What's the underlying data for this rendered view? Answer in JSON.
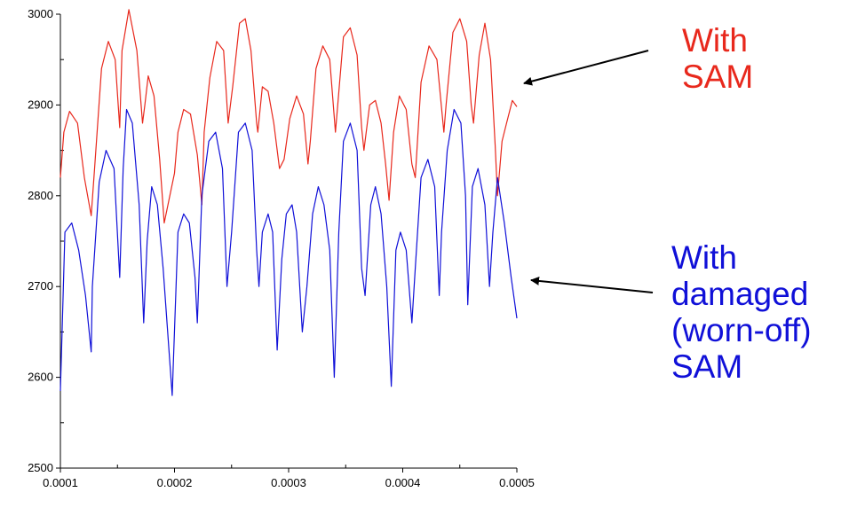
{
  "chart_data": {
    "type": "line",
    "title": "",
    "xlabel": "",
    "ylabel": "",
    "xlim": [
      0.0001,
      0.0005
    ],
    "ylim": [
      2500,
      3000
    ],
    "x_ticks": [
      "0.0001",
      "0.0002",
      "0.0003",
      "0.0004",
      "0.0005"
    ],
    "y_ticks": [
      "2500",
      "2600",
      "2700",
      "2800",
      "2900",
      "3000"
    ],
    "grid": false,
    "legend": "none",
    "series": [
      {
        "color": "#e8281c",
        "x": [
          0.0001,
          0.000103,
          0.000108,
          0.000115,
          0.000121,
          0.000127,
          0.00013,
          0.000136,
          0.000142,
          0.000148,
          0.000152,
          0.000154,
          0.00016,
          0.000167,
          0.000172,
          0.000174,
          0.000177,
          0.000182,
          0.000187,
          0.000191,
          0.0002,
          0.000203,
          0.000208,
          0.000214,
          0.00022,
          0.000224,
          0.000226,
          0.000231,
          0.000237,
          0.000243,
          0.000247,
          0.000251,
          0.000257,
          0.000262,
          0.000267,
          0.000272,
          0.000273,
          0.000277,
          0.000282,
          0.000287,
          0.000292,
          0.000296,
          0.000301,
          0.000307,
          0.000313,
          0.000317,
          0.000319,
          0.000324,
          0.00033,
          0.000336,
          0.000341,
          0.000343,
          0.000348,
          0.000354,
          0.00036,
          0.000364,
          0.000366,
          0.000371,
          0.000376,
          0.000381,
          0.000385,
          0.000388,
          0.000392,
          0.000397,
          0.000403,
          0.000408,
          0.000411,
          0.000416,
          0.000423,
          0.00043,
          0.000436,
          0.000438,
          0.000444,
          0.00045,
          0.000456,
          0.00046,
          0.000462,
          0.000467,
          0.000472,
          0.000477,
          0.000481,
          0.000483,
          0.000487,
          0.000491,
          0.000496,
          0.0005
        ],
        "values": [
          2820,
          2870,
          2893,
          2880,
          2820,
          2778,
          2830,
          2940,
          2970,
          2950,
          2875,
          2960,
          3005,
          2960,
          2880,
          2900,
          2932,
          2910,
          2840,
          2770,
          2825,
          2870,
          2895,
          2890,
          2845,
          2790,
          2870,
          2930,
          2970,
          2960,
          2880,
          2920,
          2990,
          2995,
          2960,
          2880,
          2870,
          2920,
          2915,
          2880,
          2830,
          2840,
          2885,
          2910,
          2890,
          2835,
          2860,
          2940,
          2965,
          2950,
          2870,
          2900,
          2975,
          2985,
          2955,
          2875,
          2850,
          2900,
          2905,
          2880,
          2835,
          2795,
          2870,
          2910,
          2895,
          2835,
          2820,
          2925,
          2965,
          2950,
          2870,
          2900,
          2980,
          2995,
          2970,
          2900,
          2880,
          2955,
          2990,
          2950,
          2855,
          2800,
          2860,
          2880,
          2905,
          2898
        ]
      },
      {
        "color": "#1010d8",
        "x": [
          0.0001,
          0.000104,
          0.00011,
          0.000116,
          0.000122,
          0.000127,
          0.000128,
          0.000134,
          0.00014,
          0.000147,
          0.000152,
          0.000155,
          0.000158,
          0.000163,
          0.000169,
          0.000173,
          0.000176,
          0.00018,
          0.000185,
          0.00019,
          0.000194,
          0.000198,
          0.000203,
          0.000208,
          0.000213,
          0.000218,
          0.00022,
          0.000224,
          0.00023,
          0.000236,
          0.000242,
          0.000246,
          0.00025,
          0.000256,
          0.000262,
          0.000268,
          0.000272,
          0.000274,
          0.000277,
          0.000282,
          0.000286,
          0.00029,
          0.000294,
          0.000298,
          0.000303,
          0.000307,
          0.000312,
          0.000316,
          0.000321,
          0.000326,
          0.000331,
          0.000336,
          0.00034,
          0.000344,
          0.000348,
          0.000354,
          0.00036,
          0.000364,
          0.000367,
          0.000372,
          0.000376,
          0.000381,
          0.000386,
          0.00039,
          0.000394,
          0.000398,
          0.000403,
          0.000408,
          0.000411,
          0.000416,
          0.000422,
          0.000428,
          0.000432,
          0.000434,
          0.000439,
          0.000445,
          0.000451,
          0.000455,
          0.000457,
          0.000461,
          0.000466,
          0.000472,
          0.000476,
          0.000479,
          0.000483,
          0.000489,
          0.000495,
          0.0005
        ],
        "values": [
          2585,
          2760,
          2770,
          2740,
          2690,
          2628,
          2700,
          2815,
          2850,
          2830,
          2710,
          2830,
          2895,
          2880,
          2790,
          2660,
          2750,
          2810,
          2790,
          2720,
          2650,
          2580,
          2760,
          2780,
          2770,
          2710,
          2660,
          2800,
          2860,
          2870,
          2830,
          2700,
          2760,
          2870,
          2880,
          2850,
          2740,
          2700,
          2760,
          2780,
          2760,
          2630,
          2730,
          2780,
          2790,
          2760,
          2650,
          2700,
          2780,
          2810,
          2790,
          2740,
          2600,
          2760,
          2860,
          2880,
          2850,
          2720,
          2690,
          2790,
          2810,
          2780,
          2700,
          2590,
          2740,
          2760,
          2740,
          2660,
          2720,
          2820,
          2840,
          2810,
          2690,
          2760,
          2850,
          2895,
          2880,
          2800,
          2680,
          2810,
          2830,
          2790,
          2700,
          2760,
          2820,
          2770,
          2710,
          2665
        ]
      }
    ]
  },
  "annotations": [
    {
      "lines": [
        "With",
        "SAM"
      ],
      "color": "#e8281c"
    },
    {
      "lines": [
        "With",
        "damaged",
        "(worn-off)",
        "SAM"
      ],
      "color": "#1010d8"
    }
  ]
}
